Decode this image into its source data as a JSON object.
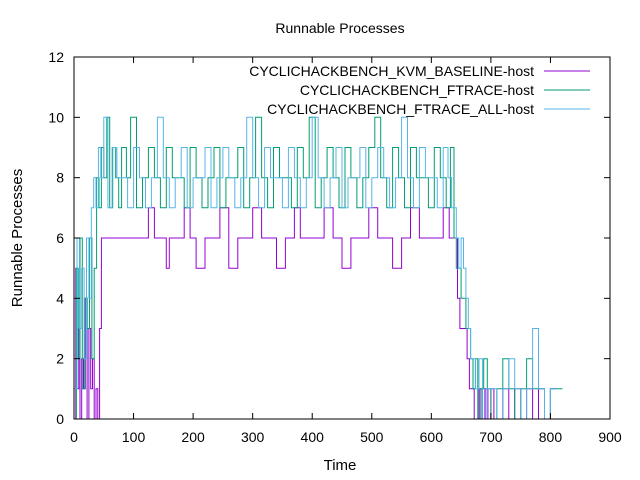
{
  "chart_data": {
    "type": "line",
    "title": "Runnable Processes",
    "xlabel": "Time",
    "ylabel": "Runnable Processes",
    "xlim": [
      0,
      900
    ],
    "ylim": [
      0,
      12
    ],
    "xticks": [
      0,
      100,
      200,
      300,
      400,
      500,
      600,
      700,
      800,
      900
    ],
    "yticks": [
      0,
      2,
      4,
      6,
      8,
      10,
      12
    ],
    "grid": false,
    "legend": "top-right",
    "series": [
      {
        "name": "CYCLICHACKBENCH_KVM_BASELINE-host",
        "color": "#9400d3",
        "x": [
          0,
          3,
          5,
          8,
          10,
          13,
          16,
          19,
          22,
          25,
          28,
          31,
          34,
          37,
          40,
          43,
          46,
          50,
          60,
          80,
          100,
          115,
          125,
          135,
          145,
          155,
          160,
          175,
          185,
          195,
          205,
          220,
          230,
          245,
          260,
          275,
          285,
          300,
          315,
          325,
          340,
          355,
          370,
          380,
          395,
          405,
          420,
          435,
          450,
          465,
          480,
          495,
          510,
          520,
          535,
          550,
          565,
          580,
          595,
          610,
          620,
          630,
          636,
          640,
          644,
          648,
          652,
          656,
          660,
          664,
          668,
          672,
          676,
          680,
          685,
          690,
          695,
          700,
          705,
          710,
          720,
          730,
          740,
          750,
          760,
          770,
          780,
          790,
          800,
          810
        ],
        "y": [
          0,
          5,
          1,
          3,
          0,
          2,
          1,
          4,
          0,
          3,
          1,
          2,
          0,
          1,
          0,
          3,
          6,
          6,
          6,
          6,
          6,
          6,
          7,
          6,
          6,
          5,
          6,
          6,
          7,
          6,
          5,
          6,
          6,
          7,
          5,
          6,
          6,
          7,
          6,
          6,
          5,
          6,
          7,
          6,
          6,
          6,
          7,
          6,
          5,
          6,
          6,
          7,
          6,
          6,
          5,
          6,
          7,
          6,
          6,
          6,
          7,
          6,
          6,
          6,
          4,
          3,
          3,
          3,
          2,
          1,
          1,
          0,
          0,
          1,
          0,
          1,
          0,
          1,
          0,
          0,
          1,
          0,
          1,
          0,
          1,
          0,
          1,
          0,
          1,
          1
        ]
      },
      {
        "name": "CYCLICHACKBENCH_FTRACE-host",
        "color": "#009e73",
        "x": [
          0,
          4,
          7,
          10,
          14,
          18,
          22,
          26,
          30,
          34,
          38,
          42,
          46,
          50,
          55,
          60,
          65,
          70,
          75,
          80,
          88,
          95,
          105,
          115,
          125,
          135,
          145,
          155,
          165,
          175,
          185,
          195,
          205,
          215,
          225,
          235,
          245,
          255,
          265,
          275,
          285,
          295,
          305,
          315,
          325,
          335,
          345,
          355,
          365,
          375,
          385,
          395,
          405,
          415,
          425,
          435,
          445,
          455,
          465,
          475,
          485,
          495,
          505,
          515,
          525,
          535,
          545,
          555,
          565,
          575,
          585,
          595,
          605,
          615,
          625,
          632,
          638,
          642,
          646,
          650,
          654,
          658,
          662,
          666,
          670,
          674,
          678,
          682,
          688,
          694,
          700,
          710,
          720,
          730,
          740,
          750,
          760,
          770,
          780,
          790,
          800,
          810,
          820
        ],
        "y": [
          0,
          5,
          2,
          6,
          1,
          4,
          3,
          6,
          2,
          5,
          8,
          7,
          9,
          8,
          10,
          7,
          9,
          8,
          7,
          9,
          8,
          10,
          7,
          8,
          9,
          8,
          7,
          9,
          8,
          8,
          7,
          9,
          8,
          7,
          8,
          9,
          7,
          8,
          8,
          9,
          7,
          8,
          10,
          8,
          7,
          9,
          8,
          8,
          7,
          9,
          8,
          10,
          7,
          8,
          9,
          8,
          7,
          9,
          8,
          7,
          8,
          9,
          10,
          8,
          7,
          9,
          8,
          7,
          9,
          8,
          8,
          7,
          9,
          8,
          7,
          9,
          6,
          5,
          5,
          4,
          4,
          3,
          3,
          2,
          1,
          2,
          0,
          1,
          2,
          1,
          0,
          1,
          2,
          1,
          0,
          1,
          2,
          1,
          1,
          0,
          1,
          1,
          1
        ]
      },
      {
        "name": "CYCLICHACKBENCH_FTRACE_ALL-host",
        "color": "#56b4e9",
        "x": [
          0,
          5,
          9,
          13,
          17,
          21,
          25,
          29,
          33,
          37,
          41,
          45,
          50,
          57,
          64,
          72,
          80,
          90,
          100,
          110,
          120,
          130,
          140,
          150,
          160,
          170,
          180,
          190,
          200,
          210,
          220,
          230,
          240,
          250,
          260,
          270,
          280,
          290,
          300,
          310,
          320,
          330,
          340,
          350,
          360,
          370,
          380,
          390,
          400,
          410,
          420,
          430,
          440,
          450,
          460,
          470,
          480,
          490,
          500,
          510,
          520,
          530,
          540,
          550,
          560,
          570,
          580,
          590,
          600,
          610,
          620,
          628,
          634,
          638,
          642,
          646,
          650,
          654,
          658,
          662,
          666,
          670,
          674,
          680,
          686,
          692,
          700,
          710,
          720,
          730,
          740,
          750,
          760,
          770,
          780,
          790,
          800,
          810
        ],
        "y": [
          1,
          6,
          3,
          5,
          2,
          6,
          4,
          7,
          8,
          7,
          9,
          8,
          10,
          7,
          9,
          8,
          8,
          7,
          9,
          8,
          7,
          8,
          10,
          8,
          7,
          8,
          9,
          7,
          8,
          8,
          9,
          7,
          8,
          9,
          8,
          7,
          8,
          10,
          8,
          7,
          9,
          8,
          8,
          7,
          9,
          8,
          7,
          8,
          10,
          8,
          7,
          8,
          9,
          7,
          8,
          8,
          9,
          7,
          8,
          9,
          8,
          7,
          8,
          10,
          8,
          7,
          9,
          8,
          8,
          7,
          9,
          8,
          7,
          7,
          6,
          5,
          6,
          5,
          4,
          3,
          2,
          2,
          1,
          2,
          0,
          1,
          1,
          0,
          1,
          2,
          1,
          0,
          1,
          3,
          1,
          0,
          1,
          1
        ]
      }
    ]
  }
}
